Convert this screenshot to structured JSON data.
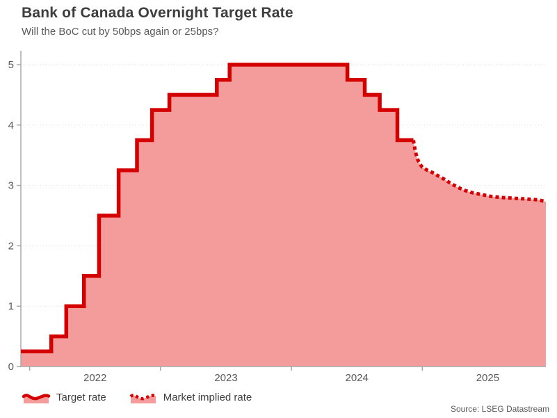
{
  "source": "Source: LSEG Datastream",
  "colors": {
    "line": "#d40000",
    "fill": "#f49c9c",
    "axis": "#a8a8a8",
    "grid": "#d9d9d9",
    "tick_text": "#595959",
    "title_text": "#3d3d3d"
  },
  "chart_data": {
    "type": "area",
    "title": "Bank of Canada Overnight Target Rate",
    "subtitle": "Will the BoC cut by 50bps again or 25bps?",
    "xlabel": "",
    "ylabel": "",
    "grid": "dotted horizontal",
    "legend_position": "bottom-left",
    "x_ticks": [
      2022,
      2023,
      2024,
      2025
    ],
    "y_ticks": [
      0,
      1,
      2,
      3,
      4,
      5
    ],
    "x_range": [
      2021.933,
      2025.944
    ],
    "y_range": [
      0,
      5.207
    ],
    "series": [
      {
        "name": "Target rate",
        "style": "step-solid",
        "note": "policy rate changes as [decimal_year_effective, new_rate_percent]",
        "changes": [
          [
            2021.933,
            0.25
          ],
          [
            2022.165,
            0.5
          ],
          [
            2022.28,
            1.0
          ],
          [
            2022.415,
            1.5
          ],
          [
            2022.53,
            2.5
          ],
          [
            2022.68,
            3.25
          ],
          [
            2022.82,
            3.75
          ],
          [
            2022.935,
            4.25
          ],
          [
            2023.068,
            4.5
          ],
          [
            2023.43,
            4.75
          ],
          [
            2023.528,
            5.0
          ],
          [
            2024.428,
            4.75
          ],
          [
            2024.56,
            4.5
          ],
          [
            2024.675,
            4.25
          ],
          [
            2024.81,
            3.75
          ]
        ],
        "end": 2024.932
      },
      {
        "name": "Market implied rate",
        "style": "dotted",
        "points": [
          [
            2024.932,
            3.75
          ],
          [
            2024.945,
            3.58
          ],
          [
            2024.96,
            3.45
          ],
          [
            2024.98,
            3.36
          ],
          [
            2025.0,
            3.3
          ],
          [
            2025.04,
            3.25
          ],
          [
            2025.08,
            3.21
          ],
          [
            2025.12,
            3.16
          ],
          [
            2025.17,
            3.1
          ],
          [
            2025.22,
            3.03
          ],
          [
            2025.27,
            2.97
          ],
          [
            2025.32,
            2.92
          ],
          [
            2025.38,
            2.88
          ],
          [
            2025.45,
            2.85
          ],
          [
            2025.52,
            2.82
          ],
          [
            2025.6,
            2.8
          ],
          [
            2025.68,
            2.79
          ],
          [
            2025.76,
            2.78
          ],
          [
            2025.83,
            2.77
          ],
          [
            2025.89,
            2.76
          ],
          [
            2025.944,
            2.73
          ]
        ]
      }
    ]
  }
}
